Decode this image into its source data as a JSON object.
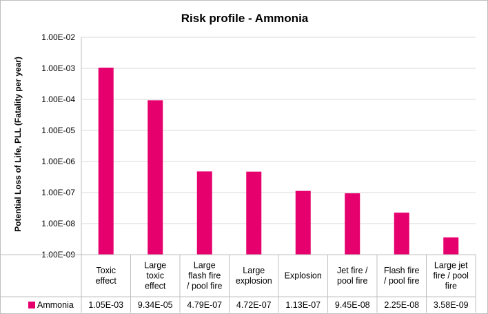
{
  "chart_data": {
    "type": "bar",
    "title": "Risk profile - Ammonia",
    "ylabel": "Potential Loss of Life, PLL (Fatality per year)",
    "xlabel": "",
    "yscale": "log",
    "ylim": [
      1e-09,
      0.01
    ],
    "yticks": [
      "1.00E-09",
      "1.00E-08",
      "1.00E-07",
      "1.00E-06",
      "1.00E-05",
      "1.00E-04",
      "1.00E-03",
      "1.00E-02"
    ],
    "grid": true,
    "legend": "in data table, left",
    "categories": [
      [
        "Toxic",
        "effect"
      ],
      [
        "Large",
        "toxic",
        "effect"
      ],
      [
        "Large",
        "flash fire",
        "/ pool fire"
      ],
      [
        "Large",
        "explosion"
      ],
      [
        "Explosion"
      ],
      [
        "Jet fire /",
        "pool fire"
      ],
      [
        "Flash fire",
        "/ pool fire"
      ],
      [
        "Large jet",
        "fire / pool",
        "fire"
      ]
    ],
    "series": [
      {
        "name": "Ammonia",
        "color": "#e6006e",
        "values": [
          0.00105,
          9.34e-05,
          4.79e-07,
          4.72e-07,
          1.13e-07,
          9.45e-08,
          2.25e-08,
          3.58e-09
        ],
        "labels": [
          "1.05E-03",
          "9.34E-05",
          "4.79E-07",
          "4.72E-07",
          "1.13E-07",
          "9.45E-08",
          "2.25E-08",
          "3.58E-09"
        ]
      }
    ]
  }
}
